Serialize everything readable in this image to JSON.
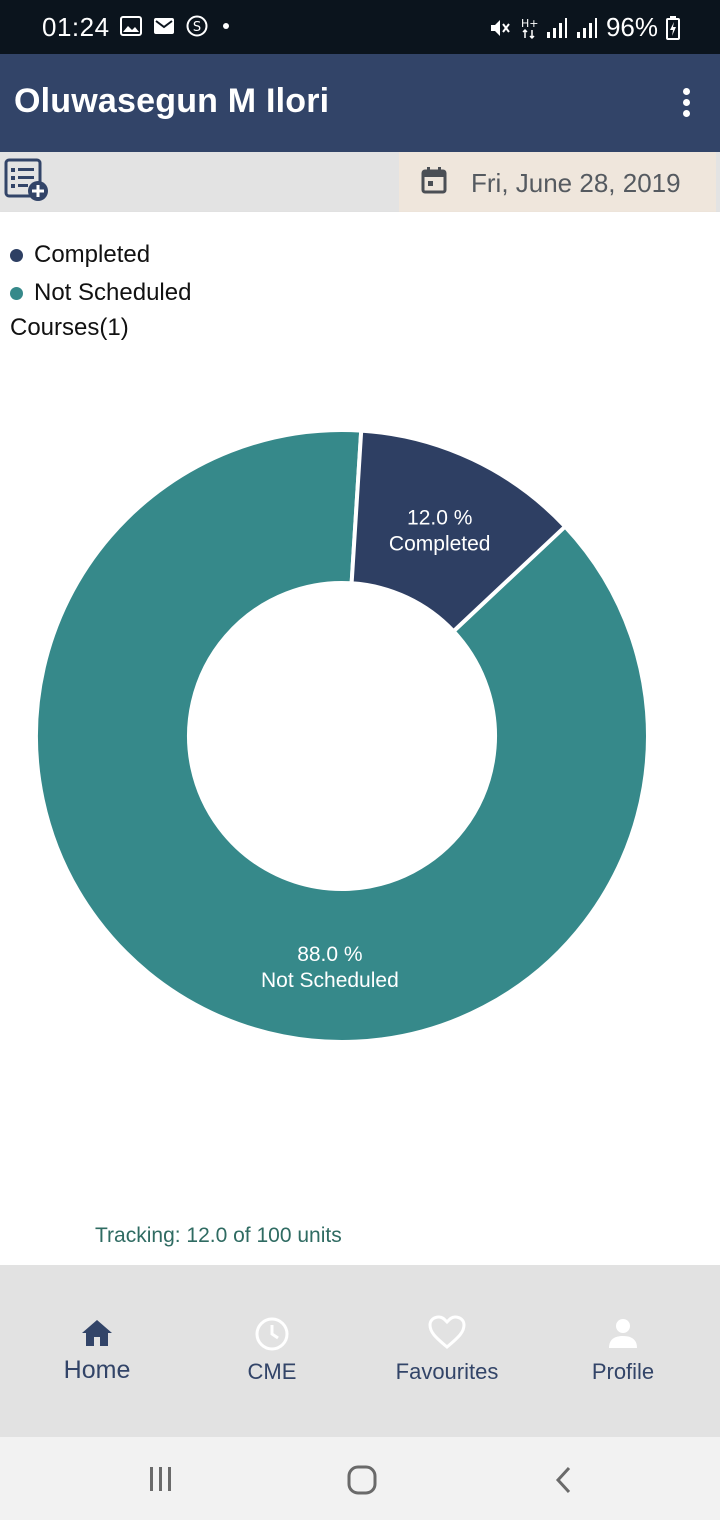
{
  "status_bar": {
    "time": "01:24",
    "left_icons": [
      "image-icon",
      "mail-icon",
      "s-coin-icon",
      "dot-icon"
    ],
    "battery": "96%",
    "right_icons": [
      "mute-icon",
      "h-plus-data-icon",
      "signal-icon",
      "signal-icon",
      "battery-charging-icon"
    ]
  },
  "app_bar": {
    "title": "Oluwasegun M Ilori",
    "menu_icon": "more-vert-icon",
    "background": "#324468"
  },
  "toolbar": {
    "add_icon": "playlist-add-icon",
    "date": "Fri, June 28, 2019",
    "date_icon": "calendar-icon"
  },
  "legend": {
    "items": [
      {
        "label": "Completed",
        "color": "#2e3f63"
      },
      {
        "label": "Not Scheduled",
        "color": "#36898a"
      }
    ]
  },
  "courses_label": "Courses(1)",
  "chart_data": {
    "type": "pie",
    "donut": true,
    "slices": [
      {
        "label": "Not Scheduled",
        "value": 88.0,
        "value_label": "88.0 %",
        "color": "#36898a"
      },
      {
        "label": "Completed",
        "value": 12.0,
        "value_label": "12.0 %",
        "color": "#2e3f63"
      }
    ]
  },
  "tracking_text": "Tracking:  12.0 of 100 units",
  "bottom_nav": {
    "items": [
      {
        "label": "Home",
        "icon": "home-icon",
        "active": true
      },
      {
        "label": "CME",
        "icon": "clock-icon",
        "active": false
      },
      {
        "label": "Favourites",
        "icon": "heart-icon",
        "active": false
      },
      {
        "label": "Profile",
        "icon": "person-icon",
        "active": false
      }
    ]
  },
  "system_nav": {
    "icons": [
      "recents-icon",
      "home-circle-icon",
      "back-icon"
    ]
  }
}
